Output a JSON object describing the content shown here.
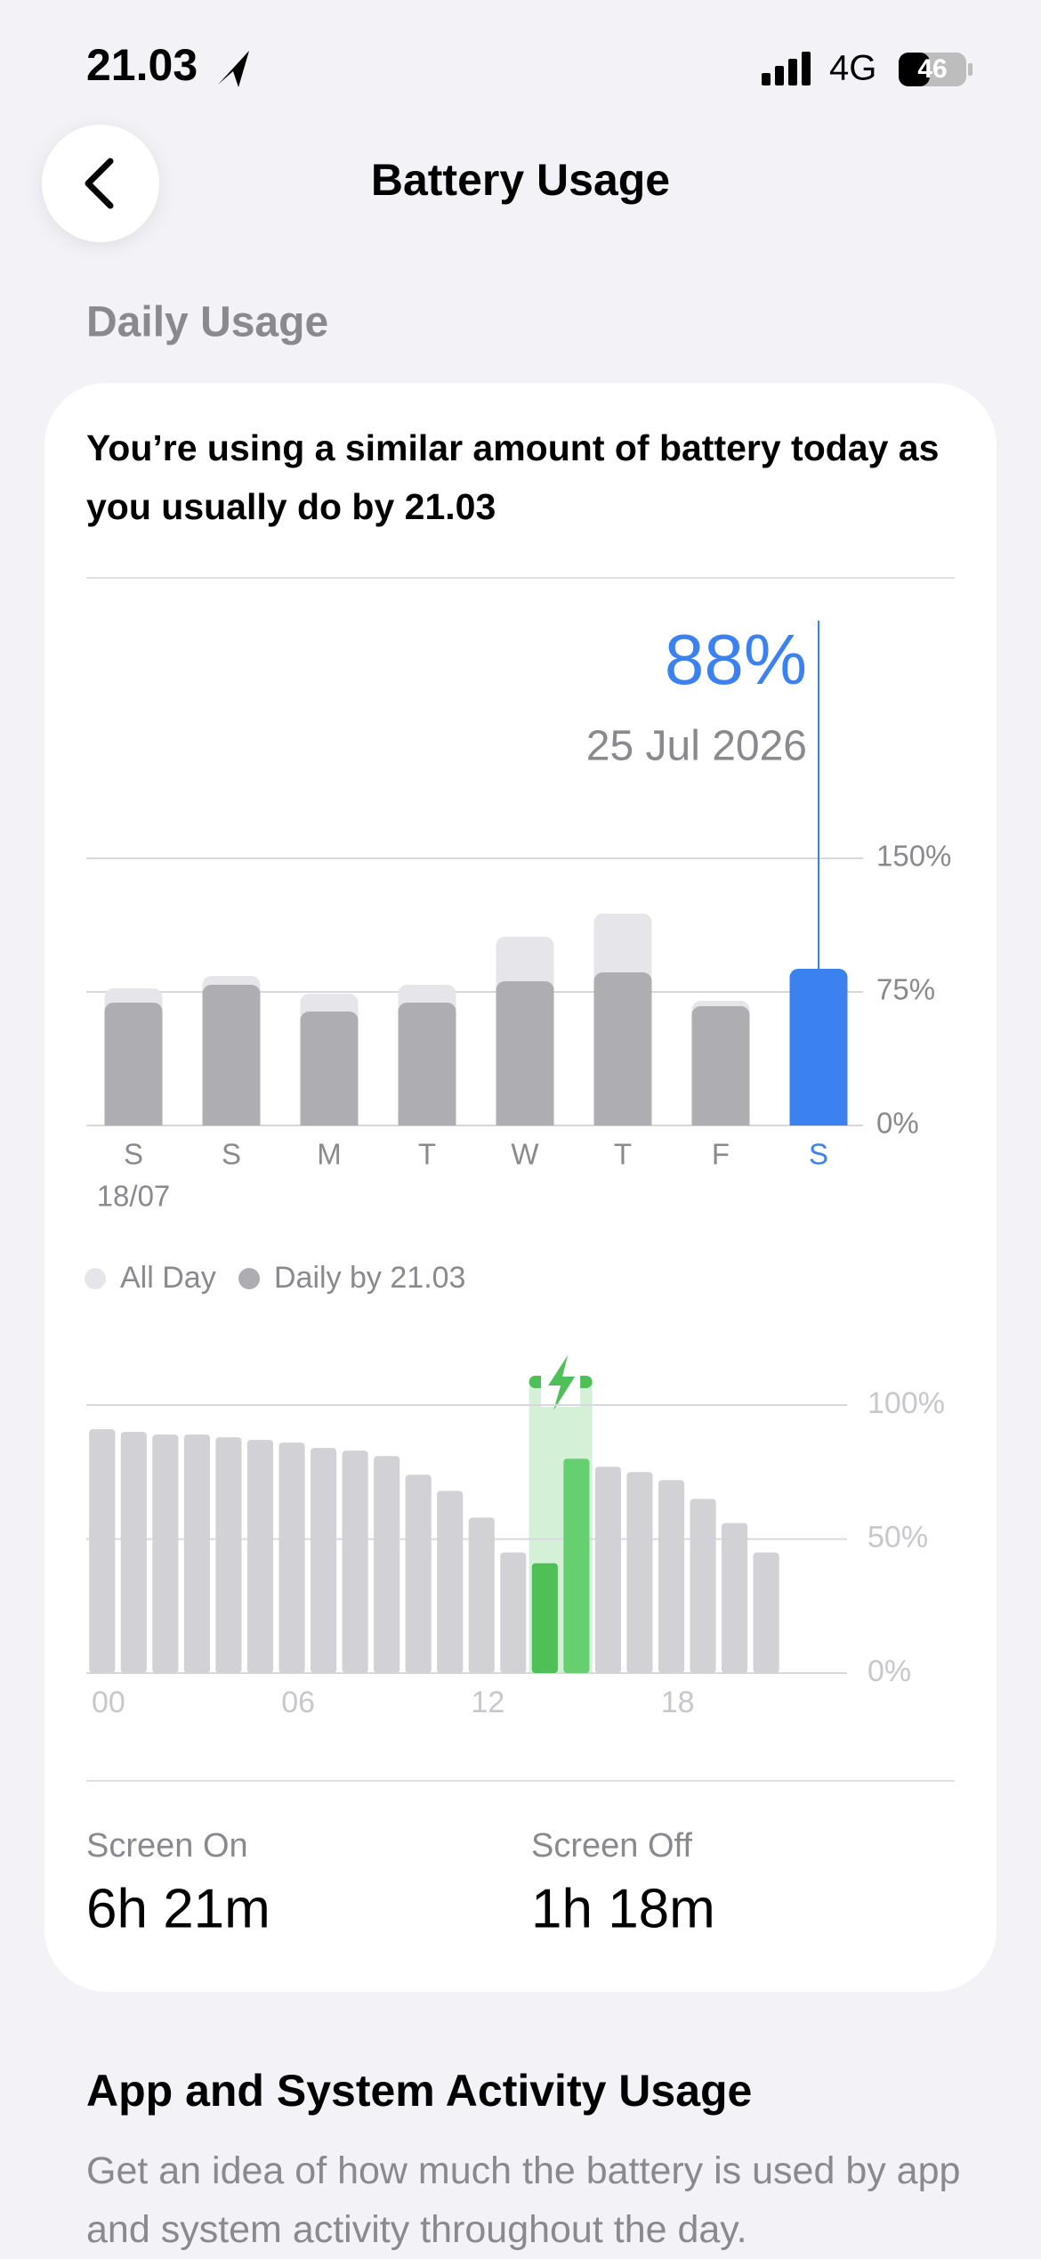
{
  "status_bar": {
    "time": "21.03",
    "network": "4G",
    "battery": "46"
  },
  "header": {
    "title": "Battery Usage"
  },
  "section": {
    "title": "Daily Usage"
  },
  "card": {
    "headline": "You’re using a similar amount of battery today as you usually do by 21.03",
    "stats": [
      {
        "label": "Screen On",
        "value": "6h 21m"
      },
      {
        "label": "Screen Off",
        "value": "1h 18m"
      }
    ]
  },
  "chart_data": [
    {
      "type": "bar",
      "categories": [
        "S",
        "S",
        "M",
        "T",
        "W",
        "T",
        "F",
        "S"
      ],
      "category_sublabels": [
        "18/07",
        null,
        null,
        null,
        null,
        null,
        null,
        null
      ],
      "annotation": "25 Jul 2026",
      "series": [
        {
          "name": "All Day",
          "color": "#e5e5ea",
          "values": [
            77,
            84,
            74,
            79,
            106,
            119,
            70,
            88
          ]
        },
        {
          "name": "Daily by 21.03",
          "color": "#aeaeb2",
          "values": [
            69,
            79,
            64,
            69,
            81,
            86,
            67,
            88
          ],
          "value_labels": [
            null,
            null,
            null,
            null,
            null,
            null,
            null,
            "88%"
          ]
        }
      ],
      "highlight_color": "#3b82f0",
      "ylim": [
        0,
        150
      ],
      "yticks": [
        {
          "value": 0,
          "label": "0%"
        },
        {
          "value": 75,
          "label": "75%"
        },
        {
          "value": 150,
          "label": "150%"
        }
      ],
      "grid": true
    },
    {
      "type": "bar",
      "x": [
        0,
        1,
        2,
        3,
        4,
        5,
        6,
        7,
        8,
        9,
        10,
        11,
        12,
        13,
        14,
        15,
        16,
        17,
        18,
        19,
        20,
        21,
        22,
        23
      ],
      "values": [
        91,
        90,
        89,
        89,
        88,
        87,
        86,
        84,
        83,
        81,
        74,
        68,
        58,
        45,
        41,
        80,
        77,
        75,
        72,
        65,
        56,
        45,
        null,
        null
      ],
      "bar_colors": [
        "#d1d1d6",
        "#d1d1d6",
        "#d1d1d6",
        "#d1d1d6",
        "#d1d1d6",
        "#d1d1d6",
        "#d1d1d6",
        "#d1d1d6",
        "#d1d1d6",
        "#d1d1d6",
        "#d1d1d6",
        "#d1d1d6",
        "#d1d1d6",
        "#d1d1d6",
        "#4fbf58",
        "#66cf70",
        "#d1d1d6",
        "#d1d1d6",
        "#d1d1d6",
        "#d1d1d6",
        "#d1d1d6",
        "#d1d1d6",
        null,
        null
      ],
      "charging_band_color": "#d4f1d8",
      "xlim": [
        0,
        24
      ],
      "xticks": [
        {
          "value": 0,
          "label": "00"
        },
        {
          "value": 6,
          "label": "06"
        },
        {
          "value": 12,
          "label": "12"
        },
        {
          "value": 18,
          "label": "18"
        }
      ],
      "ylim": [
        0,
        100
      ],
      "yticks": [
        {
          "value": 0,
          "label": "0%"
        },
        {
          "value": 50,
          "label": "50%"
        },
        {
          "value": 100,
          "label": "100%"
        }
      ],
      "grid": true
    }
  ],
  "footer": {
    "title": "App and System Activity Usage",
    "text": "Get an idea of how much the battery is used by app and system activity throughout the day."
  }
}
